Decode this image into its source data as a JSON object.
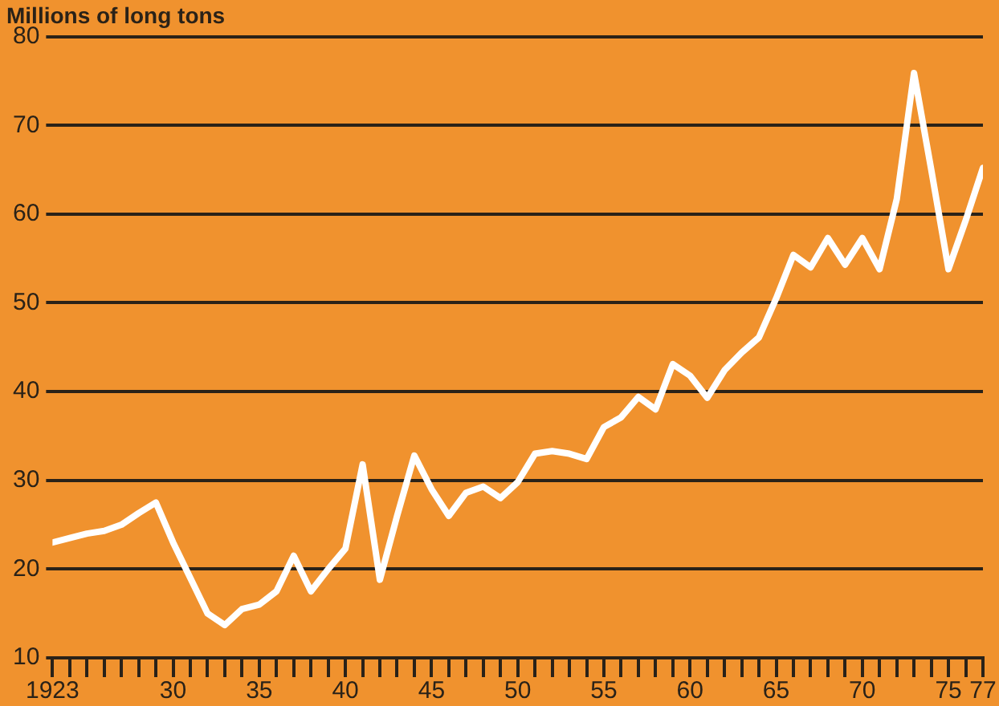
{
  "chart_data": {
    "type": "line",
    "ylabel": "Millions of long tons",
    "x": [
      1923,
      1924,
      1925,
      1926,
      1927,
      1928,
      1929,
      1930,
      1931,
      1932,
      1933,
      1934,
      1935,
      1936,
      1937,
      1938,
      1939,
      1940,
      1941,
      1942,
      1943,
      1944,
      1945,
      1946,
      1947,
      1948,
      1949,
      1950,
      1951,
      1952,
      1953,
      1954,
      1955,
      1956,
      1957,
      1958,
      1959,
      1960,
      1961,
      1962,
      1963,
      1964,
      1965,
      1966,
      1967,
      1968,
      1969,
      1970,
      1971,
      1972,
      1973,
      1974,
      1975,
      1976,
      1977
    ],
    "series": [
      {
        "color": "#ffffff",
        "values": [
          23,
          23.5,
          24,
          24.3,
          25,
          26.3,
          27.5,
          23,
          19,
          15,
          13.7,
          15.5,
          16,
          17.5,
          21.5,
          17.5,
          20,
          22.3,
          31.8,
          18.8,
          26,
          32.8,
          29,
          26,
          28.6,
          29.3,
          28,
          29.8,
          33,
          33.3,
          33,
          32.4,
          36,
          37.1,
          39.4,
          38,
          43.1,
          41.8,
          39.3,
          42.4,
          44.4,
          46.1,
          50.5,
          55.4,
          54,
          57.3,
          54.3,
          57.3,
          53.8,
          61.7,
          75.9,
          65,
          53.8,
          59.3,
          65.2
        ]
      }
    ],
    "xlim": [
      1923,
      1977
    ],
    "xticks": [
      {
        "value": 1923,
        "label": "1923"
      },
      {
        "value": 1924,
        "label": null
      },
      {
        "value": 1925,
        "label": null
      },
      {
        "value": 1926,
        "label": null
      },
      {
        "value": 1927,
        "label": null
      },
      {
        "value": 1928,
        "label": null
      },
      {
        "value": 1929,
        "label": null
      },
      {
        "value": 1930,
        "label": "30"
      },
      {
        "value": 1931,
        "label": null
      },
      {
        "value": 1932,
        "label": null
      },
      {
        "value": 1933,
        "label": null
      },
      {
        "value": 1934,
        "label": null
      },
      {
        "value": 1935,
        "label": "35"
      },
      {
        "value": 1936,
        "label": null
      },
      {
        "value": 1937,
        "label": null
      },
      {
        "value": 1938,
        "label": null
      },
      {
        "value": 1939,
        "label": null
      },
      {
        "value": 1940,
        "label": "40"
      },
      {
        "value": 1941,
        "label": null
      },
      {
        "value": 1942,
        "label": null
      },
      {
        "value": 1943,
        "label": null
      },
      {
        "value": 1944,
        "label": null
      },
      {
        "value": 1945,
        "label": "45"
      },
      {
        "value": 1946,
        "label": null
      },
      {
        "value": 1947,
        "label": null
      },
      {
        "value": 1948,
        "label": null
      },
      {
        "value": 1949,
        "label": null
      },
      {
        "value": 1950,
        "label": "50"
      },
      {
        "value": 1951,
        "label": null
      },
      {
        "value": 1952,
        "label": null
      },
      {
        "value": 1953,
        "label": null
      },
      {
        "value": 1954,
        "label": null
      },
      {
        "value": 1955,
        "label": "55"
      },
      {
        "value": 1956,
        "label": null
      },
      {
        "value": 1957,
        "label": null
      },
      {
        "value": 1958,
        "label": null
      },
      {
        "value": 1959,
        "label": null
      },
      {
        "value": 1960,
        "label": "60"
      },
      {
        "value": 1961,
        "label": null
      },
      {
        "value": 1962,
        "label": null
      },
      {
        "value": 1963,
        "label": null
      },
      {
        "value": 1964,
        "label": null
      },
      {
        "value": 1965,
        "label": "65"
      },
      {
        "value": 1966,
        "label": null
      },
      {
        "value": 1967,
        "label": null
      },
      {
        "value": 1968,
        "label": null
      },
      {
        "value": 1969,
        "label": null
      },
      {
        "value": 1970,
        "label": "70"
      },
      {
        "value": 1971,
        "label": null
      },
      {
        "value": 1972,
        "label": null
      },
      {
        "value": 1973,
        "label": null
      },
      {
        "value": 1974,
        "label": null
      },
      {
        "value": 1975,
        "label": "75"
      },
      {
        "value": 1976,
        "label": null
      },
      {
        "value": 1977,
        "label": "77"
      }
    ],
    "ylim": [
      10,
      80
    ],
    "yticks": [
      10,
      20,
      30,
      40,
      50,
      60,
      70,
      80
    ],
    "grid": "y",
    "legend": false,
    "marker": "none",
    "line_style": "solid"
  }
}
